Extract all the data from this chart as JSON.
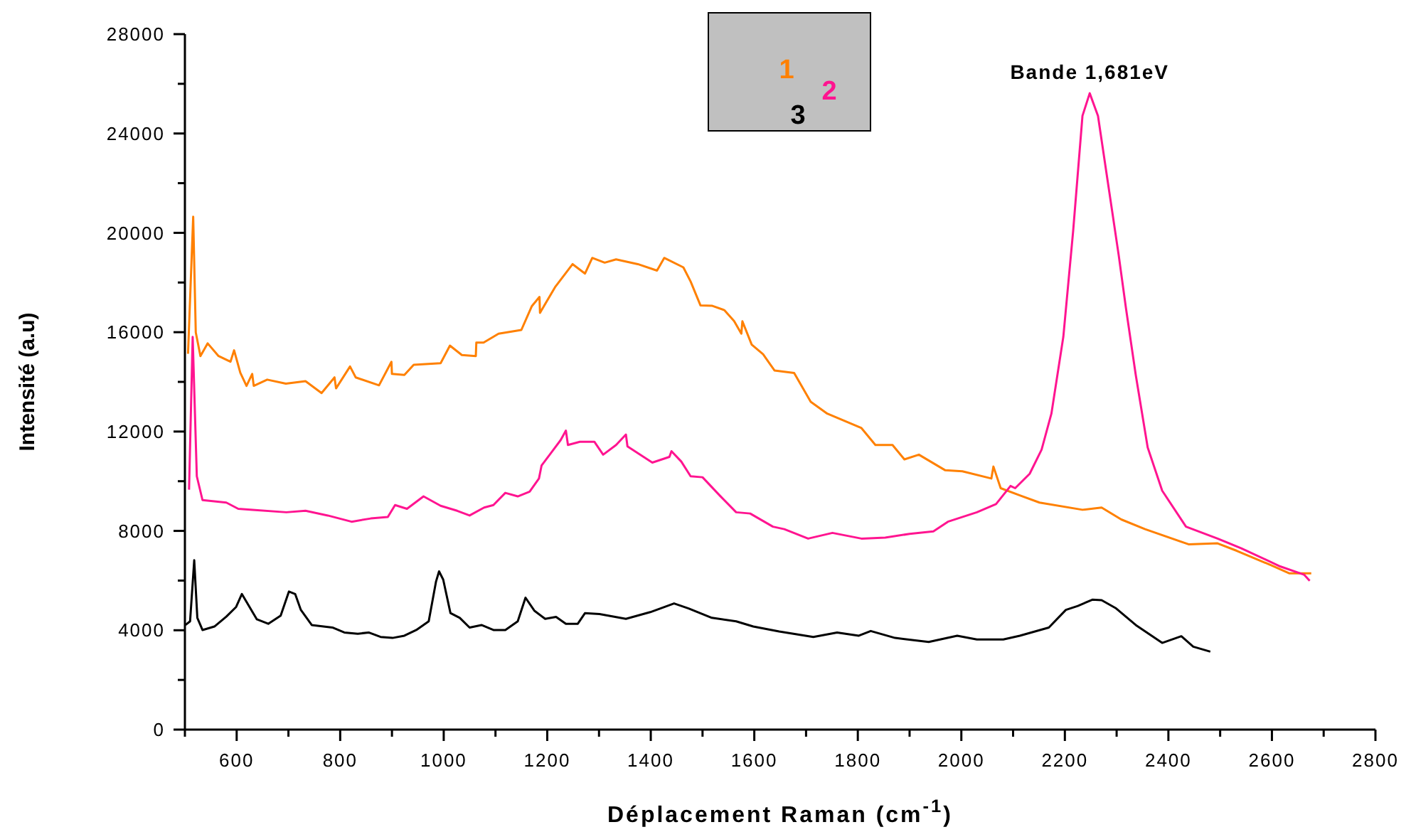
{
  "chart_data": {
    "type": "line",
    "xlabel": "Déplacement Raman (cm$^{-1}$)",
    "ylabel": "Intensité (a.u)",
    "xlim": [
      500,
      2800
    ],
    "ylim": [
      0,
      28000
    ],
    "xticks": [
      {
        "value": 500,
        "label": null
      },
      600,
      {
        "value": 700,
        "label": null
      },
      800,
      {
        "value": 900,
        "label": null
      },
      1000,
      {
        "value": 1100,
        "label": null
      },
      1200,
      {
        "value": 1300,
        "label": null
      },
      1400,
      {
        "value": 1500,
        "label": null
      },
      1600,
      {
        "value": 1700,
        "label": null
      },
      1800,
      {
        "value": 1900,
        "label": null
      },
      2000,
      {
        "value": 2100,
        "label": null
      },
      2200,
      {
        "value": 2300,
        "label": null
      },
      2400,
      {
        "value": 2500,
        "label": null
      },
      2600,
      {
        "value": 2700,
        "label": null
      },
      2800
    ],
    "yticks": [
      0,
      {
        "value": 2000,
        "label": null
      },
      4000,
      {
        "value": 6000,
        "label": null
      },
      8000,
      {
        "value": 10000,
        "label": null
      },
      12000,
      {
        "value": 14000,
        "label": null
      },
      16000,
      {
        "value": 18000,
        "label": null
      },
      20000,
      {
        "value": 22000,
        "label": null
      },
      24000,
      {
        "value": 26000,
        "label": null
      },
      28000
    ],
    "grid": false,
    "legend": "top",
    "marker": "none",
    "line_style": "solid",
    "annotations": [
      {
        "text": "Bande 1,681eV",
        "x": 2248,
        "y": 25620
      }
    ],
    "series": [
      {
        "name": "1",
        "color": "#ff8000",
        "x": [
          506,
          516,
          521,
          530,
          544,
          565,
          588,
          595,
          607,
          619,
          630,
          633,
          659,
          695,
          733,
          764,
          789,
          792,
          819,
          830,
          875,
          899,
          900,
          924,
          942,
          994,
          1012,
          1035,
          1062,
          1063,
          1077,
          1106,
          1150,
          1170,
          1185,
          1186,
          1215,
          1249,
          1273,
          1287,
          1311,
          1333,
          1375,
          1412,
          1426,
          1463,
          1477,
          1496,
          1519,
          1542,
          1561,
          1575,
          1577,
          1595,
          1617,
          1639,
          1677,
          1709,
          1741,
          1807,
          1834,
          1867,
          1890,
          1918,
          1969,
          2002,
          2058,
          2062,
          2076,
          2113,
          2151,
          2234,
          2271,
          2309,
          2355,
          2439,
          2495,
          2532,
          2597,
          2634,
          2676
        ],
        "values": [
          15130,
          20650,
          15990,
          15040,
          15550,
          15040,
          14810,
          15270,
          14370,
          13840,
          14320,
          13840,
          14090,
          13930,
          14030,
          13550,
          14180,
          13740,
          14620,
          14180,
          13860,
          14810,
          14320,
          14280,
          14690,
          14750,
          15460,
          15080,
          15040,
          15580,
          15580,
          15940,
          16090,
          17040,
          17420,
          16780,
          17810,
          18740,
          18360,
          18990,
          18800,
          18930,
          18740,
          18480,
          18990,
          18610,
          18040,
          17080,
          17060,
          16890,
          16450,
          15940,
          16440,
          15500,
          15110,
          14460,
          14360,
          13200,
          12720,
          12140,
          11460,
          11460,
          10880,
          11070,
          10440,
          10400,
          10110,
          10590,
          9720,
          9430,
          9140,
          8850,
          8940,
          8460,
          8070,
          7460,
          7500,
          7200,
          6630,
          6290,
          6290
        ]
      },
      {
        "name": "2",
        "color": "#ff1490",
        "x": [
          508,
          515,
          523,
          534,
          580,
          603,
          631,
          696,
          733,
          776,
          822,
          859,
          892,
          906,
          929,
          961,
          994,
          1026,
          1050,
          1078,
          1096,
          1119,
          1143,
          1166,
          1184,
          1189,
          1212,
          1226,
          1236,
          1240,
          1263,
          1291,
          1308,
          1333,
          1352,
          1355,
          1403,
          1436,
          1440,
          1459,
          1477,
          1500,
          1533,
          1565,
          1592,
          1636,
          1658,
          1704,
          1751,
          1807,
          1853,
          1900,
          1946,
          1974,
          2030,
          2067,
          2095,
          2104,
          2132,
          2155,
          2174,
          2197,
          2216,
          2234,
          2248,
          2264,
          2286,
          2304,
          2318,
          2337,
          2360,
          2388,
          2434,
          2495,
          2541,
          2616,
          2662,
          2673
        ],
        "values": [
          9660,
          15810,
          10200,
          9240,
          9140,
          8890,
          8850,
          8750,
          8810,
          8620,
          8370,
          8500,
          8560,
          9040,
          8890,
          9390,
          9010,
          8810,
          8620,
          8940,
          9040,
          9530,
          9390,
          9580,
          10110,
          10630,
          11270,
          11660,
          12040,
          11460,
          11590,
          11590,
          11070,
          11460,
          11880,
          11400,
          10750,
          10980,
          11210,
          10790,
          10200,
          10160,
          9430,
          8750,
          8700,
          8170,
          8070,
          7690,
          7920,
          7690,
          7730,
          7880,
          7980,
          8370,
          8750,
          9080,
          9810,
          9720,
          10300,
          11270,
          12720,
          15810,
          20070,
          24710,
          25620,
          24710,
          21620,
          19100,
          16970,
          14270,
          11360,
          9620,
          8170,
          7690,
          7300,
          6570,
          6240,
          5990
        ]
      },
      {
        "name": "3",
        "color": "#000000",
        "x": [
          501,
          510,
          518,
          524,
          534,
          557,
          580,
          599,
          610,
          639,
          661,
          685,
          701,
          713,
          724,
          745,
          785,
          808,
          834,
          855,
          878,
          901,
          924,
          947,
          971,
          985,
          991,
          999,
          1013,
          1031,
          1050,
          1073,
          1096,
          1119,
          1143,
          1158,
          1175,
          1196,
          1217,
          1236,
          1259,
          1273,
          1301,
          1352,
          1399,
          1445,
          1473,
          1518,
          1565,
          1598,
          1648,
          1714,
          1760,
          1802,
          1825,
          1872,
          1937,
          1992,
          2030,
          2081,
          2113,
          2169,
          2202,
          2225,
          2253,
          2271,
          2299,
          2337,
          2388,
          2425,
          2448,
          2481
        ],
        "values": [
          4210,
          4360,
          6820,
          4500,
          4010,
          4150,
          4550,
          4940,
          5460,
          4440,
          4260,
          4590,
          5560,
          5460,
          4820,
          4210,
          4110,
          3910,
          3860,
          3910,
          3730,
          3690,
          3780,
          4010,
          4360,
          5950,
          6370,
          6040,
          4690,
          4500,
          4110,
          4210,
          4010,
          4010,
          4360,
          5310,
          4790,
          4460,
          4540,
          4260,
          4260,
          4690,
          4650,
          4460,
          4730,
          5080,
          4880,
          4500,
          4360,
          4150,
          3950,
          3730,
          3910,
          3780,
          3970,
          3690,
          3530,
          3780,
          3630,
          3630,
          3780,
          4110,
          4820,
          4980,
          5230,
          5210,
          4880,
          4210,
          3490,
          3760,
          3340,
          3140
        ]
      }
    ]
  }
}
